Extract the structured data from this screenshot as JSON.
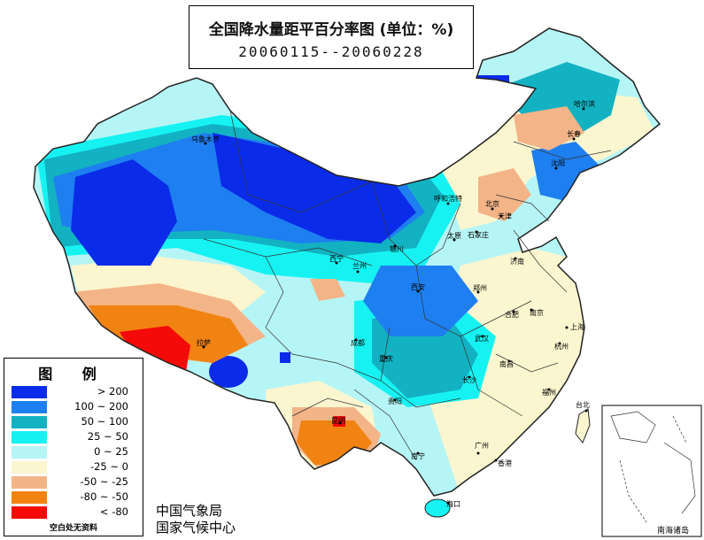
{
  "title": {
    "main": "全国降水量距平百分率图 (单位：%)",
    "date_range": "20060115--20060228"
  },
  "legend": {
    "heading": "图  例",
    "items": [
      {
        "label": "> 200",
        "color": "#0a2be8"
      },
      {
        "label": "100 ~ 200",
        "color": "#1e7ff0"
      },
      {
        "label": "50 ~ 100",
        "color": "#13b2c2"
      },
      {
        "label": "25 ~ 50",
        "color": "#16f2f2"
      },
      {
        "label": "0 ~ 25",
        "color": "#b6f5f5"
      },
      {
        "label": "-25 ~ 0",
        "color": "#fbf6cf"
      },
      {
        "label": "-50 ~ -25",
        "color": "#f3b487"
      },
      {
        "label": "-80 ~ -50",
        "color": "#f18312"
      },
      {
        "label": "< -80",
        "color": "#f50a0a"
      }
    ],
    "footnote": "空白处无资料"
  },
  "agency": {
    "line1": "中国气象局",
    "line2": "国家气候中心"
  },
  "inset": {
    "label": "南海诸岛"
  },
  "cities": {
    "harbin": "哈尔滨",
    "changchun": "长春",
    "shenyang": "沈阳",
    "beijing": "北京",
    "tianjin": "天津",
    "shijiazhuang": "石家庄",
    "taiyuan": "太原",
    "jinan": "济南",
    "hohhot": "呼和浩特",
    "yinchuan": "银川",
    "lanzhou": "兰州",
    "xining": "西宁",
    "xian": "西安",
    "zhengzhou": "郑州",
    "hefei": "合肥",
    "nanjing": "南京",
    "shanghai": "上海",
    "hangzhou": "杭州",
    "wuhan": "武汉",
    "nanchang": "南昌",
    "changsha": "长沙",
    "fuzhou": "福州",
    "taipei": "台北",
    "guangzhou": "广州",
    "hongkong": "香港",
    "nanning": "南宁",
    "haikou": "海口",
    "guiyang": "贵阳",
    "kunming": "昆明",
    "chengdu": "成都",
    "chongqing": "重庆",
    "lhasa": "拉萨",
    "urumqi": "乌鲁木齐"
  }
}
